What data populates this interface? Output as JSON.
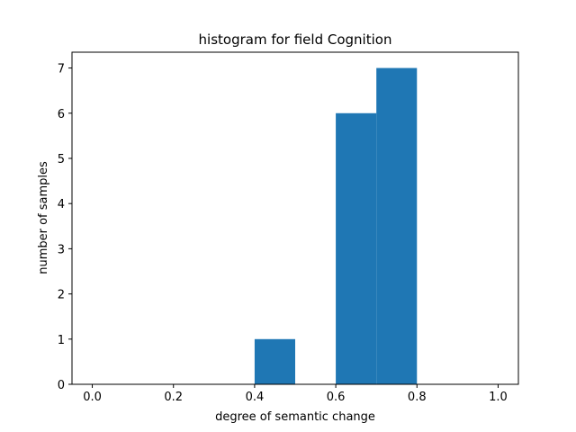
{
  "chart_data": {
    "type": "bar",
    "title": "histogram for field Cognition",
    "xlabel": "degree of semantic change",
    "ylabel": "number of samples",
    "bins": [
      {
        "x0": 0.4,
        "x1": 0.5,
        "count": 1
      },
      {
        "x0": 0.6,
        "x1": 0.7,
        "count": 6
      },
      {
        "x0": 0.7,
        "x1": 0.8,
        "count": 7
      }
    ],
    "xlim": [
      -0.05,
      1.05
    ],
    "ylim": [
      0,
      7.35
    ],
    "xticks": [
      "0.0",
      "0.2",
      "0.4",
      "0.6",
      "0.8",
      "1.0"
    ],
    "yticks": [
      "0",
      "1",
      "2",
      "3",
      "4",
      "5",
      "6",
      "7"
    ],
    "bar_color": "#1f77b4",
    "grid": false,
    "legend": "none"
  }
}
